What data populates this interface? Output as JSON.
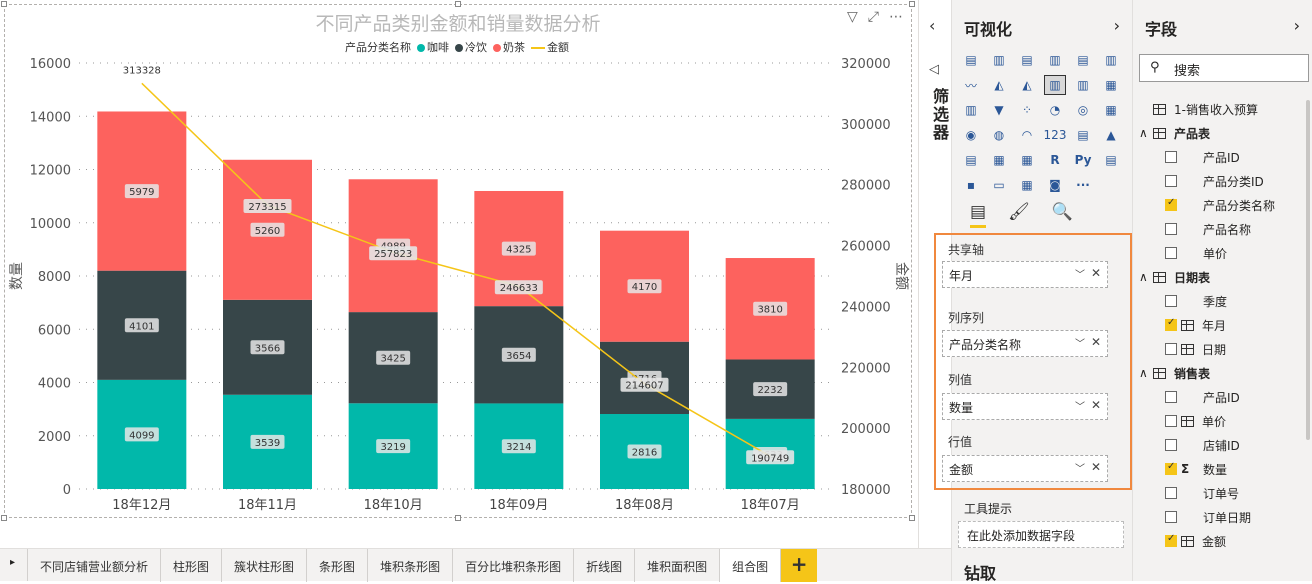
{
  "chart_data": {
    "type": "bar-line-combo",
    "title": "不同产品类别金额和销量数据分析",
    "legend_title": "产品分类名称",
    "legend": [
      {
        "name": "咖啡",
        "color": "#01b8aa"
      },
      {
        "name": "冷饮",
        "color": "#374649"
      },
      {
        "name": "奶茶",
        "color": "#fd625e"
      },
      {
        "name": "金额",
        "color": "#f5c518"
      }
    ],
    "categories": [
      "18年12月",
      "18年11月",
      "18年10月",
      "18年09月",
      "18年08月",
      "18年07月"
    ],
    "series": [
      {
        "name": "咖啡",
        "values": [
          4099,
          3539,
          3219,
          3214,
          2816,
          2633
        ]
      },
      {
        "name": "冷饮",
        "values": [
          4101,
          3566,
          3425,
          3654,
          2716,
          2232
        ]
      },
      {
        "name": "奶茶",
        "values": [
          5979,
          5260,
          4989,
          4325,
          4170,
          3810
        ]
      }
    ],
    "line": {
      "name": "金额",
      "values": [
        313328,
        273315,
        257823,
        246633,
        214607,
        190749
      ]
    },
    "ylabel": "数量",
    "y2label": "金额",
    "ylim": [
      0,
      16000
    ],
    "yticks": [
      0,
      2000,
      4000,
      6000,
      8000,
      10000,
      12000,
      14000,
      16000
    ],
    "y2lim": [
      180000,
      320000
    ],
    "y2ticks": [
      180000,
      200000,
      220000,
      240000,
      260000,
      280000,
      300000,
      320000
    ],
    "legend_position": "top-center"
  },
  "filters": {
    "label": "筛选器"
  },
  "viz_pane": {
    "title": "可视化",
    "icons": [
      "stacked-bar",
      "stacked-column",
      "clustered-bar",
      "clustered-column",
      "100-stacked-bar",
      "100-stacked-column",
      "line",
      "area",
      "stacked-area",
      "line-clustered-column",
      "line-stacked-column",
      "ribbon",
      "waterfall",
      "funnel",
      "scatter",
      "pie",
      "donut",
      "treemap",
      "map",
      "filled-map",
      "gauge",
      "card",
      "multi-row-card",
      "kpi",
      "slicer",
      "table",
      "matrix",
      "R",
      "Py",
      "key-influencers",
      "decomposition-tree",
      "qa",
      "arcgis",
      "shape-map",
      "more"
    ],
    "icon_glyphs": [
      "▤",
      "▥",
      "▤",
      "▥",
      "▤",
      "▥",
      "〰",
      "◭",
      "◭",
      "▥",
      "▥",
      "▦",
      "▥",
      "▼",
      "⁘",
      "◔",
      "◎",
      "▦",
      "◉",
      "◍",
      "◠",
      "123",
      "▤",
      "▲",
      "▤",
      "▦",
      "▦",
      "R",
      "Py",
      "▤",
      "▪",
      "▭",
      "▦",
      "◙",
      "···"
    ],
    "selected_index": 9,
    "wells": [
      {
        "label": "共享轴",
        "value": "年月"
      },
      {
        "label": "列序列",
        "value": "产品分类名称"
      },
      {
        "label": "列值",
        "value": "数量"
      },
      {
        "label": "行值",
        "value": "金额"
      }
    ],
    "tooltip_label": "工具提示",
    "tooltip_placeholder": "在此处添加数据字段",
    "drill_label": "钻取"
  },
  "fields_pane": {
    "title": "字段",
    "search_placeholder": "搜索",
    "tables": [
      {
        "name": "1-销售收入预算",
        "checked": false,
        "expanded": false,
        "fields": []
      },
      {
        "name": "产品表",
        "checked": true,
        "expanded": true,
        "fields": [
          {
            "name": "产品ID",
            "checked": false,
            "type": "text"
          },
          {
            "name": "产品分类ID",
            "checked": false,
            "type": "text"
          },
          {
            "name": "产品分类名称",
            "checked": true,
            "type": "text"
          },
          {
            "name": "产品名称",
            "checked": false,
            "type": "text"
          },
          {
            "name": "单价",
            "checked": false,
            "type": "text"
          }
        ]
      },
      {
        "name": "日期表",
        "checked": true,
        "expanded": true,
        "fields": [
          {
            "name": "季度",
            "checked": false,
            "type": "text"
          },
          {
            "name": "年月",
            "checked": true,
            "type": "table"
          },
          {
            "name": "日期",
            "checked": false,
            "type": "hierarchy"
          }
        ]
      },
      {
        "name": "销售表",
        "checked": true,
        "expanded": true,
        "fields": [
          {
            "name": "产品ID",
            "checked": false,
            "type": "text"
          },
          {
            "name": "单价",
            "checked": false,
            "type": "table"
          },
          {
            "name": "店铺ID",
            "checked": false,
            "type": "text"
          },
          {
            "name": "数量",
            "checked": true,
            "type": "sigma"
          },
          {
            "name": "订单号",
            "checked": false,
            "type": "text"
          },
          {
            "name": "订单日期",
            "checked": false,
            "type": "text"
          },
          {
            "name": "金额",
            "checked": true,
            "type": "table"
          }
        ]
      }
    ]
  },
  "pages": {
    "tabs": [
      "不同店铺营业额分析",
      "柱形图",
      "簇状柱形图",
      "条形图",
      "堆积条形图",
      "百分比堆积条形图",
      "折线图",
      "堆积面积图",
      "组合图"
    ],
    "active_index": 8,
    "add_label": "+"
  }
}
